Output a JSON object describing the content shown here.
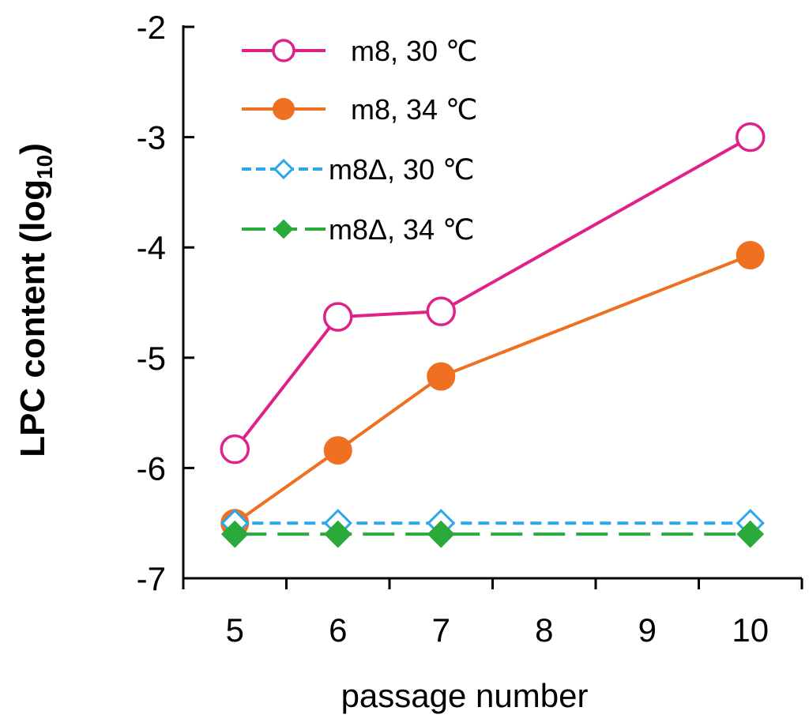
{
  "chart_data": {
    "type": "line",
    "title": "",
    "xlabel": "passage number",
    "ylabel": "LPC content (log",
    "ylabel_subscript": "10",
    "ylabel_suffix": ")",
    "x_ticks": [
      "5",
      "6",
      "7",
      "8",
      "9",
      "10"
    ],
    "y_ticks": [
      "-2",
      "-3",
      "-4",
      "-5",
      "-6",
      "-7"
    ],
    "xlim": [
      4.5,
      10.5
    ],
    "ylim": [
      -7,
      -2
    ],
    "grid": false,
    "legend_position": "top-left",
    "series": [
      {
        "name": "m8, 30 ℃",
        "color": "#E0218A",
        "marker": "circle-open",
        "line": "solid",
        "x": [
          5,
          6,
          7,
          10
        ],
        "y": [
          -5.83,
          -4.63,
          -4.58,
          -3.0
        ]
      },
      {
        "name": "m8, 34 ℃",
        "color": "#EE7020",
        "marker": "circle-filled",
        "line": "solid",
        "x": [
          5,
          6,
          7,
          10
        ],
        "y": [
          -6.5,
          -5.84,
          -5.17,
          -4.07
        ]
      },
      {
        "name": "m8Δ, 30 ℃",
        "color": "#2CA8E8",
        "marker": "diamond-open",
        "line": "dashed",
        "x": [
          5,
          6,
          7,
          10
        ],
        "y": [
          -6.5,
          -6.5,
          -6.5,
          -6.5
        ]
      },
      {
        "name": "m8Δ, 34 ℃",
        "color": "#2AAA3A",
        "marker": "diamond-filled",
        "line": "longdash",
        "x": [
          5,
          6,
          7,
          10
        ],
        "y": [
          -6.6,
          -6.6,
          -6.6,
          -6.6
        ]
      }
    ]
  }
}
